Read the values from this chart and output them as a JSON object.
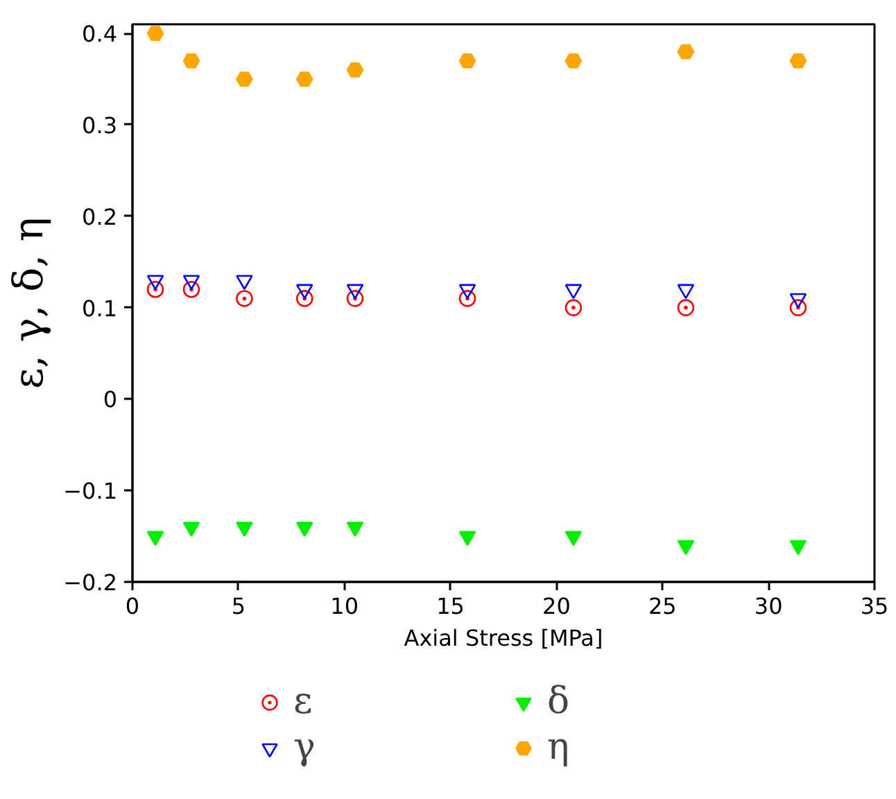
{
  "chart_data": {
    "type": "scatter",
    "xlabel": "Axial Stress [MPa]",
    "ylabel": "ε, γ, δ, η",
    "x": [
      1.08,
      2.78,
      5.28,
      8.12,
      10.5,
      15.8,
      20.8,
      26.1,
      31.4
    ],
    "series": [
      {
        "name": "ε",
        "color": "#ff0000",
        "marker": "circle",
        "values": [
          0.12,
          0.12,
          0.11,
          0.11,
          0.11,
          0.11,
          0.1,
          0.1,
          0.1
        ]
      },
      {
        "name": "γ",
        "color": "#0000ff",
        "marker": "triangle",
        "values": [
          0.13,
          0.13,
          0.13,
          0.12,
          0.12,
          0.12,
          0.12,
          0.12,
          0.11
        ]
      },
      {
        "name": "δ",
        "color": "#00ee00",
        "marker": "triangle",
        "values": [
          -0.15,
          -0.14,
          -0.14,
          -0.14,
          -0.14,
          -0.15,
          -0.15,
          -0.16,
          -0.16
        ]
      },
      {
        "name": "η",
        "color": "#ffa500",
        "values": [
          0.4,
          0.37,
          0.35,
          0.35,
          0.36,
          0.37,
          0.37,
          0.38,
          0.37
        ]
      }
    ],
    "xlim": [
      0,
      35
    ],
    "ylim": [
      -0.2,
      0.41
    ],
    "xticks": [
      0,
      5,
      10,
      15,
      20,
      25,
      30,
      35
    ],
    "yticks": [
      {
        "value": -0.2,
        "label": "−0.2"
      },
      {
        "value": -0.1,
        "label": "−0.1"
      },
      0,
      0.1,
      0.2,
      0.3,
      0.4
    ],
    "grid": false,
    "legend": "bottom"
  }
}
